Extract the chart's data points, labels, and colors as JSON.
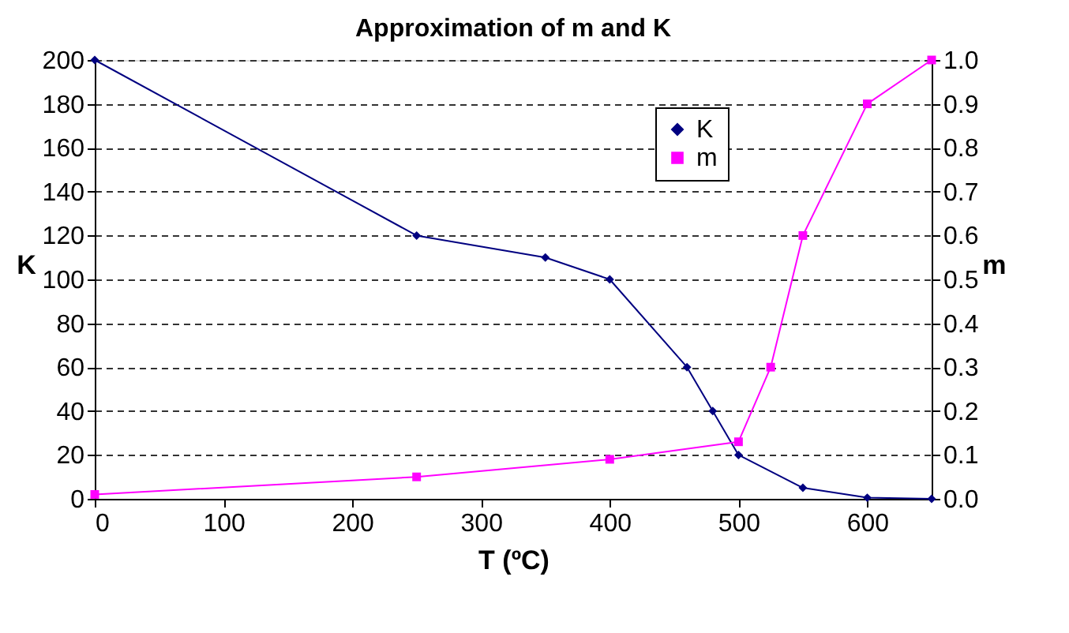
{
  "chart_data": {
    "type": "line",
    "title": "Approximation of m and K",
    "xlabel": "T (ºC)",
    "ylabel": "K",
    "y2label": "m",
    "xlim": [
      0,
      650
    ],
    "xticks": [
      0,
      100,
      200,
      300,
      400,
      500,
      600
    ],
    "ylim": [
      0,
      200
    ],
    "yticks": [
      0,
      20,
      40,
      60,
      80,
      100,
      120,
      140,
      160,
      180,
      200
    ],
    "y2lim": [
      0,
      1.0
    ],
    "y2ticks": [
      {
        "value": 0,
        "label": "0.0"
      },
      {
        "value": 0.1,
        "label": "0.1"
      },
      {
        "value": 0.2,
        "label": "0.2"
      },
      {
        "value": 0.3,
        "label": "0.3"
      },
      {
        "value": 0.4,
        "label": "0.4"
      },
      {
        "value": 0.5,
        "label": "0.5"
      },
      {
        "value": 0.6,
        "label": "0.6"
      },
      {
        "value": 0.7,
        "label": "0.7"
      },
      {
        "value": 0.8,
        "label": "0.8"
      },
      {
        "value": 0.9,
        "label": "0.9"
      },
      {
        "value": 1.0,
        "label": "1.0"
      }
    ],
    "grid": "y",
    "legend": "top right",
    "series": [
      {
        "name": "K",
        "color": "#000080",
        "marker": "diamond",
        "x": [
          0,
          250,
          350,
          400,
          460,
          480,
          500,
          550,
          600,
          650
        ],
        "values": [
          200,
          120,
          110,
          100,
          60,
          40,
          20,
          5,
          0.5,
          0
        ]
      },
      {
        "name": "m",
        "color": "#ff00ff",
        "marker": "square",
        "axis": "y2",
        "x": [
          0,
          250,
          400,
          500,
          525,
          550,
          600,
          650
        ],
        "values": [
          0.01,
          0.05,
          0.09,
          0.13,
          0.3,
          0.6,
          0.9,
          1.0
        ]
      }
    ]
  }
}
